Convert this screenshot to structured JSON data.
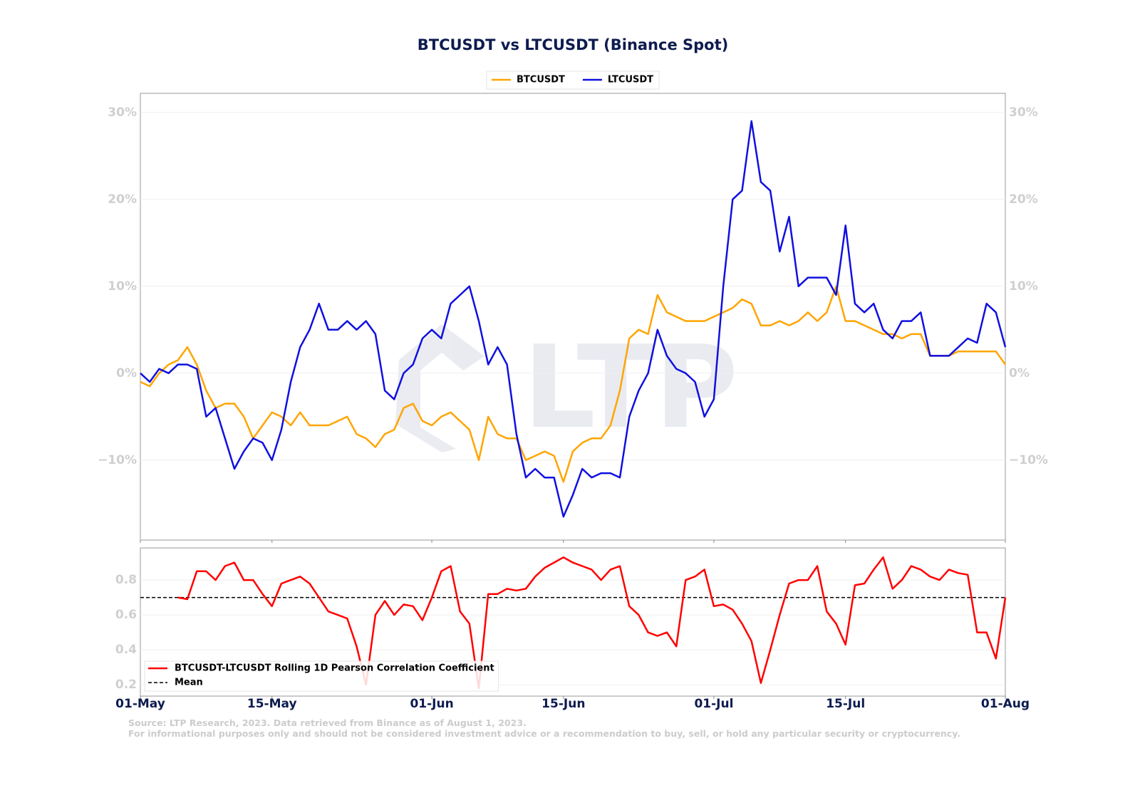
{
  "chart_data": [
    {
      "type": "line",
      "title": "BTCUSDT vs LTCUSDT (Binance Spot)",
      "watermark": "LTP",
      "legend": "top-center",
      "grid": true,
      "ylim": [
        -19.2,
        32.2
      ],
      "yticks": [
        {
          "value": -10,
          "label": "−10%"
        },
        {
          "value": 0,
          "label": "0%"
        },
        {
          "value": 10,
          "label": "10%"
        },
        {
          "value": 20,
          "label": "20%"
        },
        {
          "value": 30,
          "label": "30%"
        }
      ],
      "series": [
        {
          "name": "BTCUSDT",
          "color": "#ffa500",
          "values": [
            -1,
            -1.5,
            0,
            1,
            1.5,
            3,
            1,
            -2,
            -4,
            -3.5,
            -3.5,
            -5,
            -7.5,
            -6,
            -4.5,
            -5,
            -6,
            -4.5,
            -6,
            -6,
            -6,
            -5.5,
            -5,
            -7,
            -7.5,
            -8.5,
            -7,
            -6.5,
            -4,
            -3.5,
            -5.5,
            -6,
            -5,
            -4.5,
            -5.5,
            -6.5,
            -10,
            -5,
            -7,
            -7.5,
            -7.5,
            -10,
            -9.5,
            -9,
            -9.5,
            -12.5,
            -9,
            -8,
            -7.5,
            -7.5,
            -6,
            -2,
            4,
            5,
            4.5,
            9,
            7,
            6.5,
            6,
            6,
            6,
            6.5,
            7,
            7.5,
            8.5,
            8,
            5.5,
            5.5,
            6,
            5.5,
            6,
            7,
            6,
            7,
            10,
            6,
            6,
            5.5,
            5,
            4.5,
            4.5,
            4,
            4.5,
            4.5,
            2,
            2,
            2,
            2.5,
            2.5,
            2.5,
            2.5,
            2.5,
            1
          ]
        },
        {
          "name": "LTCUSDT",
          "color": "#1010e0",
          "values": [
            0,
            -1,
            0.5,
            0,
            1,
            1,
            0.5,
            -5,
            -4,
            -7.5,
            -11,
            -9,
            -7.5,
            -8,
            -10,
            -6.5,
            -1,
            3,
            5,
            8,
            5,
            5,
            6,
            5,
            6,
            4.5,
            -2,
            -3,
            0,
            1,
            4,
            5,
            4,
            8,
            9,
            10,
            6,
            1,
            3,
            1,
            -7,
            -12,
            -11,
            -12,
            -12,
            -16.5,
            -14,
            -11,
            -12,
            -11.5,
            -11.5,
            -12,
            -5,
            -2,
            0,
            5,
            2,
            0.5,
            0,
            -1,
            -5,
            -3,
            10,
            20,
            21,
            29,
            22,
            21,
            14,
            18,
            10,
            11,
            11,
            11,
            9,
            17,
            8,
            7,
            8,
            5,
            4,
            6,
            6,
            7,
            2,
            2,
            2,
            3,
            4,
            3.5,
            8,
            7,
            3
          ]
        }
      ]
    },
    {
      "type": "line",
      "legend": "lower-left",
      "grid": true,
      "x": [
        "01-May",
        null,
        null,
        null,
        null,
        null,
        null,
        null,
        null,
        null,
        null,
        null,
        null,
        null,
        "15-May",
        null,
        null,
        null,
        null,
        null,
        null,
        null,
        null,
        null,
        null,
        null,
        null,
        null,
        null,
        null,
        null,
        "01-Jun",
        null,
        null,
        null,
        null,
        null,
        null,
        null,
        null,
        null,
        null,
        null,
        null,
        null,
        "15-Jun",
        null,
        null,
        null,
        null,
        null,
        null,
        null,
        null,
        null,
        null,
        null,
        null,
        null,
        null,
        null,
        "01-Jul",
        null,
        null,
        null,
        null,
        null,
        null,
        null,
        null,
        null,
        null,
        null,
        null,
        null,
        "15-Jul",
        null,
        null,
        null,
        null,
        null,
        null,
        null,
        null,
        null,
        null,
        null,
        null,
        null,
        null,
        null,
        null,
        "01-Aug"
      ],
      "ylim": [
        0.135,
        0.984
      ],
      "yticks": [
        0.2,
        0.4,
        0.6,
        0.8
      ],
      "series": [
        {
          "name": "BTCUSDT-LTCUSDT Rolling 1D Pearson Correlation Coefficient",
          "color": "#ff0000",
          "values": [
            null,
            null,
            null,
            null,
            0.7,
            0.69,
            0.85,
            0.85,
            0.8,
            0.88,
            0.9,
            0.8,
            0.8,
            0.72,
            0.65,
            0.78,
            0.8,
            0.82,
            0.78,
            0.7,
            0.62,
            0.6,
            0.58,
            0.42,
            0.2,
            0.6,
            0.68,
            0.6,
            0.66,
            0.65,
            0.57,
            0.7,
            0.85,
            0.88,
            0.62,
            0.55,
            0.18,
            0.72,
            0.72,
            0.75,
            0.74,
            0.75,
            0.82,
            0.87,
            0.9,
            0.93,
            0.9,
            0.88,
            0.86,
            0.8,
            0.86,
            0.88,
            0.65,
            0.6,
            0.5,
            0.48,
            0.5,
            0.42,
            0.8,
            0.82,
            0.86,
            0.65,
            0.66,
            0.63,
            0.55,
            0.45,
            0.21,
            0.4,
            0.6,
            0.78,
            0.8,
            0.8,
            0.88,
            0.62,
            0.55,
            0.43,
            0.77,
            0.78,
            0.86,
            0.93,
            0.75,
            0.8,
            0.88,
            0.86,
            0.82,
            0.8,
            0.86,
            0.84,
            0.83,
            0.5,
            0.5,
            0.35,
            0.7
          ]
        }
      ],
      "mean": {
        "name": "Mean",
        "value": 0.7,
        "color": "#000000"
      }
    }
  ],
  "source": [
    "Source: LTP Research, 2023. Data retrieved from Binance as of August 1, 2023.",
    "For informational purposes only and should not be considered investment advice or a recommendation to buy, sell, or hold any particular security or cryptocurrency."
  ]
}
